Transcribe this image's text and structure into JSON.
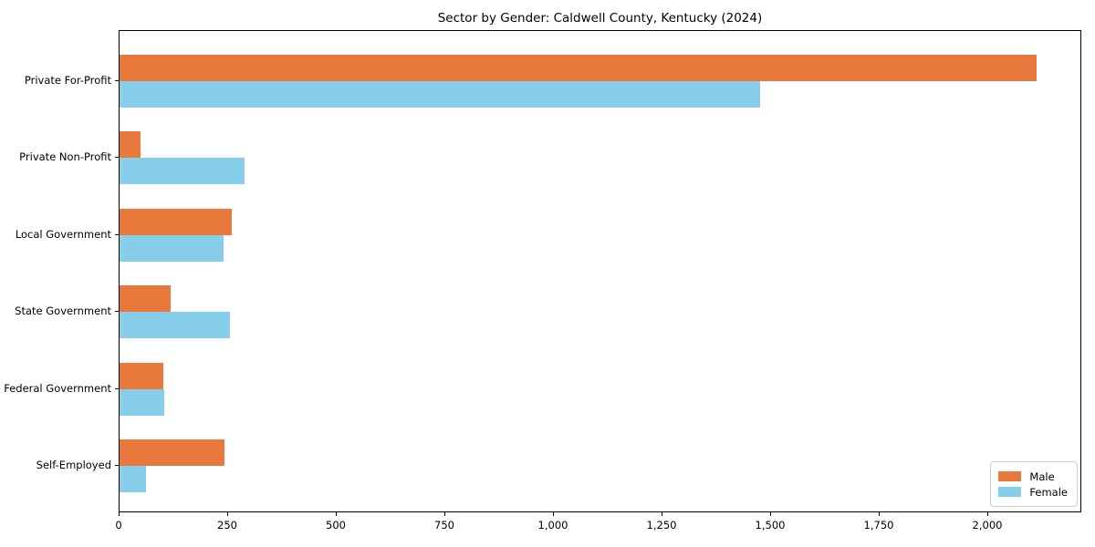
{
  "title": "Sector by Gender: Caldwell County, Kentucky (2024)",
  "colors": {
    "male": "#e8783c",
    "female": "#87ceeb",
    "spine": "#000000",
    "legend_border": "#cccccc",
    "background": "#ffffff"
  },
  "chart_data": {
    "type": "bar",
    "orientation": "horizontal",
    "title": "Sector by Gender: Caldwell County, Kentucky (2024)",
    "xlabel": "",
    "ylabel": "",
    "categories": [
      "Private For-Profit",
      "Private Non-Profit",
      "Local Government",
      "State Government",
      "Federal Government",
      "Self-Employed"
    ],
    "series": [
      {
        "name": "Male",
        "color": "#e8783c",
        "values": [
          2110,
          48,
          258,
          118,
          100,
          242
        ]
      },
      {
        "name": "Female",
        "color": "#87ceeb",
        "values": [
          1475,
          287,
          240,
          255,
          103,
          61
        ]
      }
    ],
    "xlim": [
      0,
      2216
    ],
    "xticks": [
      0,
      250,
      500,
      750,
      1000,
      1250,
      1500,
      1750,
      2000
    ],
    "xtick_labels": [
      "0",
      "250",
      "500",
      "750",
      "1,000",
      "1,250",
      "1,500",
      "1,750",
      "2,000"
    ],
    "grid": false,
    "legend": {
      "position": "lower right",
      "entries": [
        "Male",
        "Female"
      ]
    }
  }
}
